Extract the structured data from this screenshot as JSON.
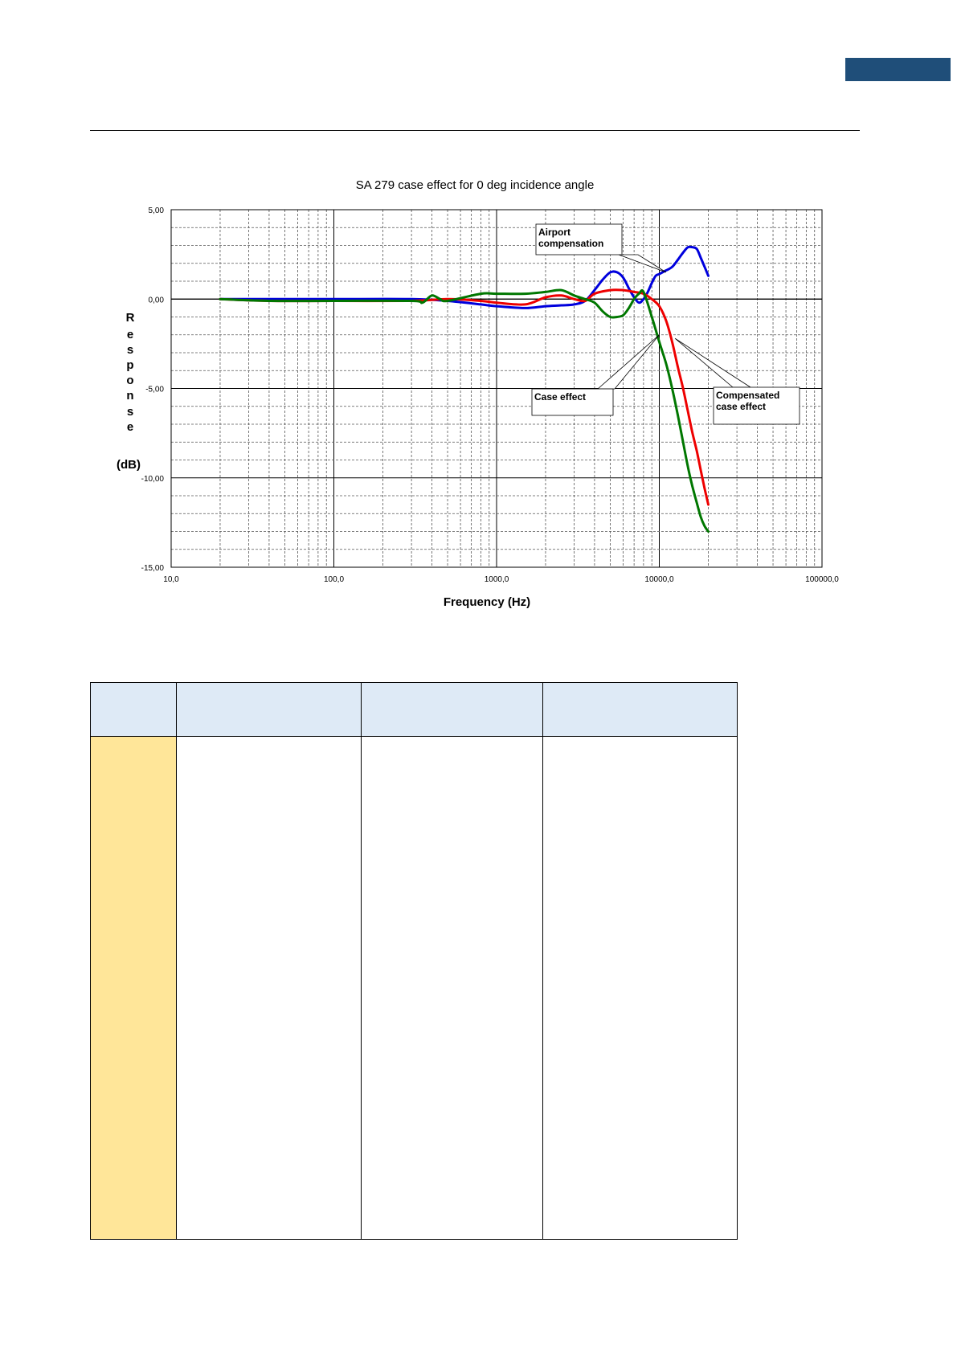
{
  "page": {
    "accent_color": "#1f4e79",
    "table_header_color": "#deeaf6",
    "table_side_color": "#ffe699"
  },
  "chart_data": {
    "type": "line",
    "title": "SA 279 case effect for 0 deg incidence angle",
    "xlabel": "Frequency (Hz)",
    "ylabel_letters": [
      "R",
      "e",
      "s",
      "p",
      "o",
      "n",
      "s",
      "e"
    ],
    "ylabel_unit": "(dB)",
    "xscale": "log",
    "xlim": [
      10,
      100000
    ],
    "ylim": [
      -15,
      5
    ],
    "grid": true,
    "xticks": [
      10,
      100,
      1000,
      10000,
      100000
    ],
    "xtick_labels": [
      "10,0",
      "100,0",
      "1000,0",
      "10000,0",
      "100000,0"
    ],
    "yticks": [
      5,
      0,
      -5,
      -10,
      -15
    ],
    "ytick_labels": [
      "5,00",
      "0,00",
      "-5,00",
      "-10,00",
      "-15,00"
    ],
    "series": [
      {
        "color": "#0000dd",
        "x": [
          20,
          40,
          100,
          300,
          500,
          800,
          1000,
          1500,
          2000,
          2500,
          3000,
          3500,
          4000,
          4500,
          5000,
          5500,
          6000,
          6500,
          7000,
          7500,
          8000,
          8500,
          9000,
          9500,
          10000,
          11000,
          12000,
          13000,
          14000,
          15000,
          16000,
          17000,
          18000,
          19000,
          20000
        ],
        "y": [
          0,
          0,
          0,
          0,
          -0.1,
          -0.3,
          -0.4,
          -0.5,
          -0.4,
          -0.35,
          -0.3,
          -0.1,
          0.5,
          1.1,
          1.5,
          1.5,
          1.2,
          0.6,
          0.1,
          -0.2,
          0,
          0.4,
          0.9,
          1.3,
          1.4,
          1.6,
          1.8,
          2.2,
          2.6,
          2.9,
          2.9,
          2.8,
          2.3,
          1.8,
          1.3
        ]
      },
      {
        "color": "#ee0000",
        "x": [
          20,
          40,
          100,
          300,
          500,
          800,
          1000,
          1500,
          2000,
          2500,
          3000,
          3500,
          4000,
          5000,
          6000,
          7000,
          8000,
          9000,
          10000,
          11000,
          12000,
          13000,
          14000,
          15000,
          16000,
          17000,
          18000,
          19000,
          20000
        ],
        "y": [
          0,
          -0.1,
          -0.1,
          -0.1,
          0,
          -0.1,
          -0.2,
          -0.3,
          0.1,
          0.2,
          0,
          -0.1,
          0.3,
          0.5,
          0.5,
          0.4,
          0.3,
          0,
          -0.4,
          -1.2,
          -2.4,
          -3.8,
          -5,
          -6.3,
          -7.5,
          -8.5,
          -9.6,
          -10.6,
          -11.5
        ]
      },
      {
        "color": "#007700",
        "x": [
          20,
          40,
          100,
          300,
          350,
          400,
          450,
          500,
          800,
          1000,
          1500,
          2000,
          2500,
          3000,
          3500,
          4000,
          4500,
          5000,
          5500,
          6000,
          6500,
          7000,
          7500,
          8000,
          9000,
          10000,
          11000,
          12000,
          13000,
          14000,
          15000,
          16000,
          17000,
          18000,
          19000,
          20000
        ],
        "y": [
          0,
          -0.1,
          -0.1,
          -0.1,
          -0.2,
          0.2,
          0,
          -0.1,
          0.3,
          0.3,
          0.3,
          0.4,
          0.5,
          0.2,
          0,
          -0.2,
          -0.7,
          -1,
          -1,
          -0.9,
          -0.5,
          0,
          0.3,
          0.4,
          -1,
          -2.4,
          -3.6,
          -5,
          -6.5,
          -8,
          -9.4,
          -10.5,
          -11.4,
          -12.2,
          -12.7,
          -13
        ]
      }
    ],
    "annotations": [
      {
        "lines": [
          "Airport",
          "compensation"
        ],
        "points_to": [
          11000,
          1.5
        ]
      },
      {
        "lines": [
          "Case effect"
        ],
        "points_to": [
          10000,
          -2
        ]
      },
      {
        "lines": [
          "Compensated",
          "case effect"
        ],
        "points_to": [
          12500,
          -2.2
        ]
      }
    ]
  }
}
